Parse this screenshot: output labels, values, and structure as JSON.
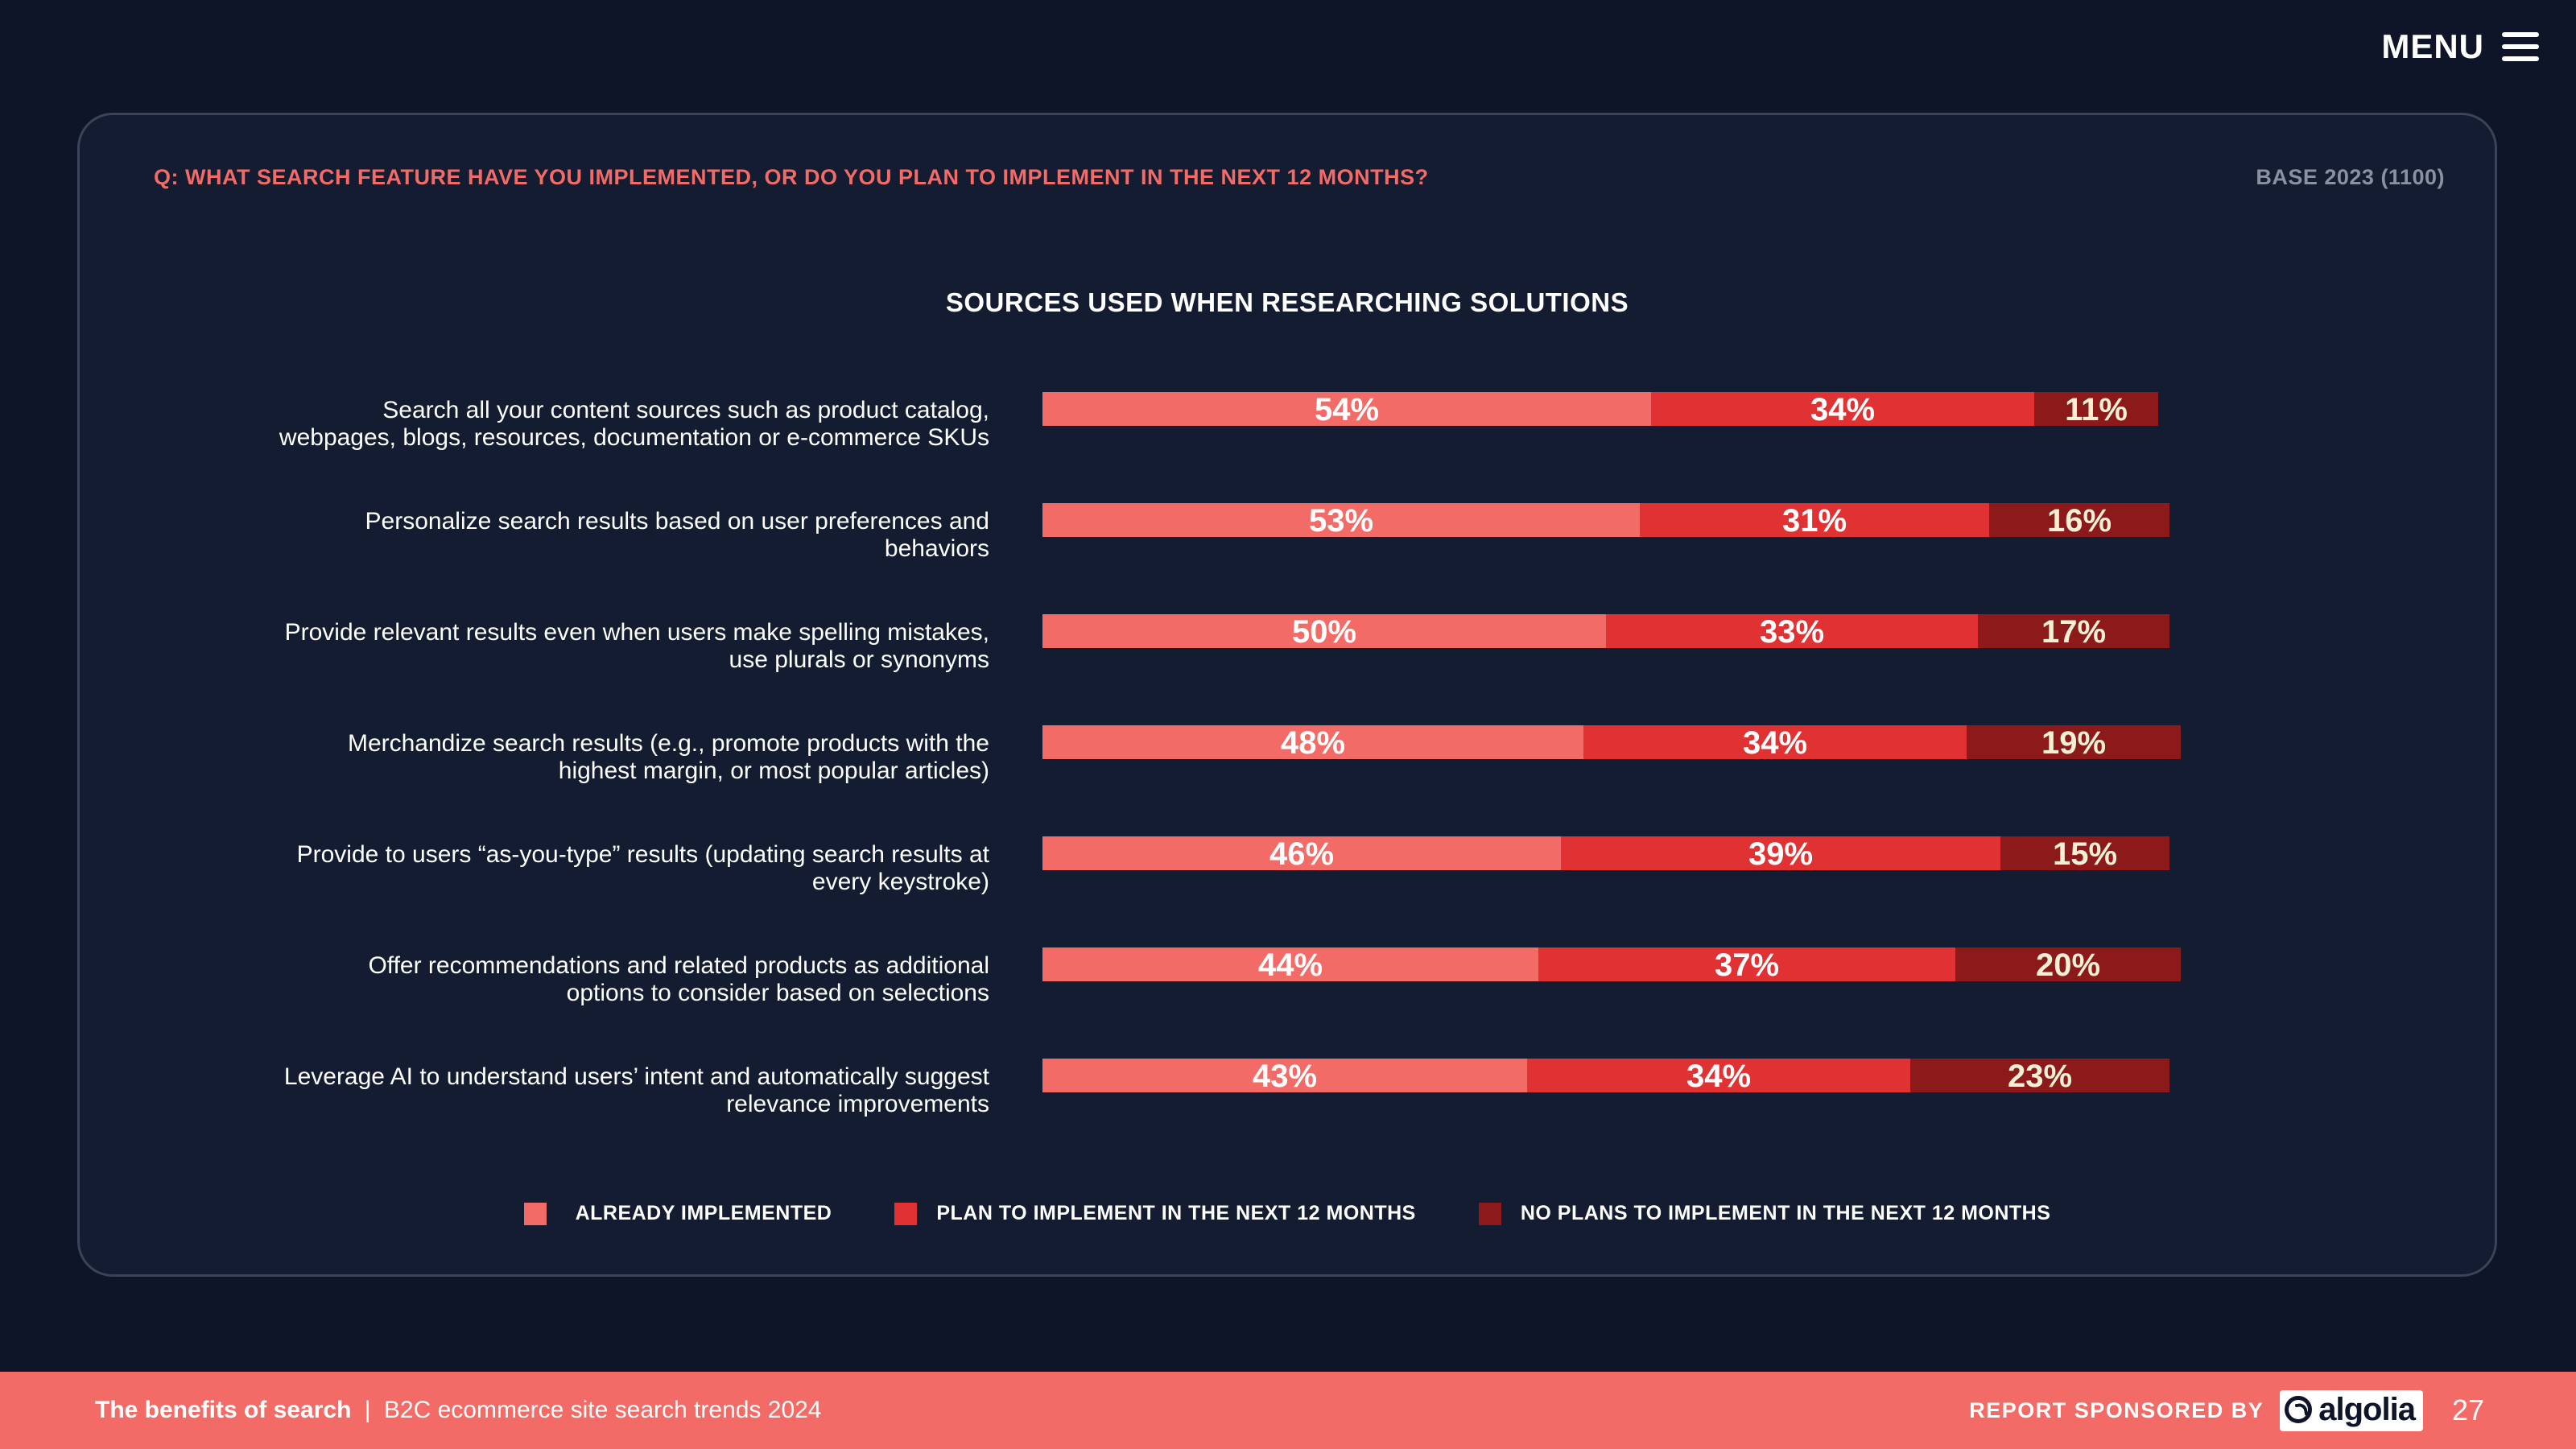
{
  "menu": {
    "label": "MENU",
    "icon": "hamburger-menu-icon"
  },
  "card": {
    "question": "Q: WHAT SEARCH FEATURE HAVE YOU IMPLEMENTED, OR DO YOU PLAN TO IMPLEMENT IN THE NEXT 12 MONTHS?",
    "base": "BASE 2023 (1100)"
  },
  "colors": {
    "already": "#f26b66",
    "plan": "#e13233",
    "no_plans": "#8c1a1a",
    "label_light": "#f3f0d6",
    "accent": "#f26b66"
  },
  "chart_data": {
    "type": "bar",
    "orientation": "horizontal",
    "stacked": true,
    "title": "SOURCES USED WHEN RESEARCHING SOLUTIONS",
    "unit": "%",
    "categories": [
      [
        "Search all your content sources such as product catalog,",
        "webpages, blogs, resources, documentation or e-commerce SKUs"
      ],
      [
        "Personalize search results based on user preferences and",
        "behaviors"
      ],
      [
        "Provide relevant results even when users make spelling mistakes,",
        "use plurals or synonyms"
      ],
      [
        "Merchandize search results (e.g., promote products with the",
        "highest margin, or most popular articles)"
      ],
      [
        "Provide to users “as-you-type” results (updating search results at",
        "every keystroke)"
      ],
      [
        "Offer recommendations and related products as additional",
        "options to consider based on selections"
      ],
      [
        "Leverage AI to understand users’ intent and automatically suggest",
        "relevance improvements"
      ]
    ],
    "series": [
      {
        "name": "ALREADY IMPLEMENTED",
        "values": [
          54,
          53,
          50,
          48,
          46,
          44,
          43
        ]
      },
      {
        "name": "PLAN TO IMPLEMENT IN THE NEXT 12 MONTHS",
        "values": [
          34,
          31,
          33,
          34,
          39,
          37,
          34
        ]
      },
      {
        "name": "NO PLANS TO IMPLEMENT IN THE NEXT 12 MONTHS",
        "values": [
          11,
          16,
          17,
          19,
          15,
          20,
          23
        ]
      }
    ],
    "xlim": [
      0,
      100
    ],
    "legend": "bottom-center"
  },
  "footer": {
    "title_bold": "The benefits of search",
    "separator": "|",
    "subtitle": "B2C ecommerce site search trends 2024",
    "sponsor_label": "REPORT SPONSORED BY",
    "sponsor_logo_text": "algolia",
    "page_number": "27"
  }
}
